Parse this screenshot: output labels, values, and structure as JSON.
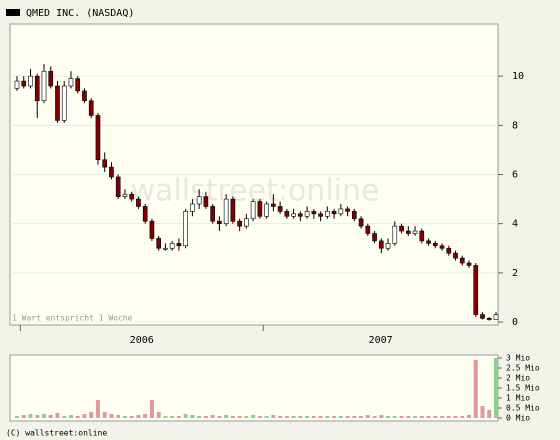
{
  "chart_data": {
    "type": "candlestick",
    "title": "QMED INC. (NASDAQ)",
    "note": "1 Wart entspricht 1 Woche",
    "watermark": "wallstreet:online",
    "footer": "(C) wallstreet:online",
    "periods": [
      {
        "label": "2006",
        "start": 1,
        "end": 37
      },
      {
        "label": "2007",
        "start": 37,
        "end": 72
      }
    ],
    "ylim": [
      0,
      12
    ],
    "yticks": [
      0,
      2,
      4,
      6,
      8,
      10
    ],
    "grid": true,
    "up_color": "#ffffff",
    "down_color": "#800000",
    "volume_up_color": "#8fcf8f",
    "volume_down_color": "#e09a9a",
    "ohlc": [
      [
        9.5,
        10.0,
        9.4,
        9.8
      ],
      [
        9.8,
        10.0,
        9.5,
        9.6
      ],
      [
        9.6,
        10.3,
        9.5,
        10.0
      ],
      [
        10.0,
        10.1,
        8.3,
        9.0
      ],
      [
        9.0,
        10.5,
        8.9,
        10.2
      ],
      [
        10.2,
        10.4,
        9.5,
        9.6
      ],
      [
        9.6,
        9.8,
        8.1,
        8.2
      ],
      [
        8.2,
        9.8,
        8.1,
        9.6
      ],
      [
        9.6,
        10.2,
        9.5,
        9.9
      ],
      [
        9.9,
        10.0,
        9.3,
        9.4
      ],
      [
        9.4,
        9.5,
        8.9,
        9.0
      ],
      [
        9.0,
        9.1,
        8.3,
        8.4
      ],
      [
        8.4,
        8.5,
        6.4,
        6.6
      ],
      [
        6.6,
        6.9,
        6.1,
        6.3
      ],
      [
        6.3,
        6.5,
        5.8,
        5.9
      ],
      [
        5.9,
        6.0,
        5.0,
        5.1
      ],
      [
        5.1,
        5.4,
        5.0,
        5.2
      ],
      [
        5.2,
        5.3,
        4.9,
        5.0
      ],
      [
        5.0,
        5.1,
        4.6,
        4.7
      ],
      [
        4.7,
        4.8,
        4.0,
        4.1
      ],
      [
        4.1,
        4.2,
        3.3,
        3.4
      ],
      [
        3.4,
        3.5,
        2.9,
        3.0
      ],
      [
        3.0,
        3.2,
        2.9,
        3.0
      ],
      [
        3.0,
        3.3,
        2.9,
        3.2
      ],
      [
        3.2,
        3.4,
        2.9,
        3.1
      ],
      [
        3.1,
        4.6,
        3.0,
        4.5
      ],
      [
        4.5,
        5.0,
        4.3,
        4.8
      ],
      [
        4.8,
        5.4,
        4.6,
        5.1
      ],
      [
        5.1,
        5.3,
        4.6,
        4.7
      ],
      [
        4.7,
        4.8,
        4.0,
        4.1
      ],
      [
        4.1,
        4.3,
        3.7,
        4.0
      ],
      [
        4.0,
        5.2,
        3.9,
        5.0
      ],
      [
        5.0,
        5.1,
        4.0,
        4.1
      ],
      [
        4.1,
        4.2,
        3.7,
        3.9
      ],
      [
        3.9,
        4.4,
        3.8,
        4.2
      ],
      [
        4.2,
        5.0,
        4.1,
        4.9
      ],
      [
        4.9,
        5.0,
        4.2,
        4.3
      ],
      [
        4.3,
        4.9,
        4.2,
        4.8
      ],
      [
        4.8,
        5.2,
        4.5,
        4.7
      ],
      [
        4.7,
        4.9,
        4.4,
        4.5
      ],
      [
        4.5,
        4.6,
        4.2,
        4.3
      ],
      [
        4.3,
        4.6,
        4.2,
        4.4
      ],
      [
        4.4,
        4.5,
        4.1,
        4.3
      ],
      [
        4.3,
        4.7,
        4.2,
        4.5
      ],
      [
        4.5,
        4.6,
        4.2,
        4.4
      ],
      [
        4.4,
        4.5,
        4.1,
        4.3
      ],
      [
        4.3,
        4.7,
        4.2,
        4.5
      ],
      [
        4.5,
        4.6,
        4.2,
        4.4
      ],
      [
        4.4,
        4.8,
        4.3,
        4.6
      ],
      [
        4.6,
        4.7,
        4.3,
        4.5
      ],
      [
        4.5,
        4.6,
        4.1,
        4.2
      ],
      [
        4.2,
        4.3,
        3.8,
        3.9
      ],
      [
        3.9,
        4.0,
        3.5,
        3.6
      ],
      [
        3.6,
        3.7,
        3.2,
        3.3
      ],
      [
        3.3,
        3.4,
        2.8,
        3.0
      ],
      [
        3.0,
        3.4,
        2.9,
        3.2
      ],
      [
        3.2,
        4.1,
        3.1,
        3.9
      ],
      [
        3.9,
        4.0,
        3.6,
        3.7
      ],
      [
        3.7,
        3.9,
        3.5,
        3.6
      ],
      [
        3.6,
        3.9,
        3.5,
        3.7
      ],
      [
        3.7,
        3.8,
        3.2,
        3.3
      ],
      [
        3.3,
        3.4,
        3.1,
        3.2
      ],
      [
        3.2,
        3.3,
        3.0,
        3.1
      ],
      [
        3.1,
        3.2,
        2.9,
        3.0
      ],
      [
        3.0,
        3.1,
        2.7,
        2.8
      ],
      [
        2.8,
        2.9,
        2.5,
        2.6
      ],
      [
        2.6,
        2.7,
        2.3,
        2.4
      ],
      [
        2.4,
        2.5,
        2.2,
        2.3
      ],
      [
        2.3,
        2.4,
        0.2,
        0.3
      ],
      [
        0.3,
        0.4,
        0.1,
        0.15
      ],
      [
        0.15,
        0.2,
        0.05,
        0.1
      ],
      [
        0.1,
        0.4,
        0.1,
        0.3
      ]
    ],
    "volume": [
      0.1,
      0.15,
      0.2,
      0.15,
      0.2,
      0.15,
      0.25,
      0.1,
      0.15,
      0.1,
      0.2,
      0.3,
      0.9,
      0.3,
      0.2,
      0.15,
      0.1,
      0.1,
      0.15,
      0.2,
      0.9,
      0.3,
      0.1,
      0.1,
      0.1,
      0.2,
      0.15,
      0.1,
      0.1,
      0.15,
      0.1,
      0.15,
      0.1,
      0.1,
      0.1,
      0.15,
      0.1,
      0.1,
      0.15,
      0.1,
      0.1,
      0.1,
      0.1,
      0.1,
      0.1,
      0.1,
      0.1,
      0.1,
      0.1,
      0.1,
      0.1,
      0.1,
      0.15,
      0.1,
      0.15,
      0.1,
      0.1,
      0.1,
      0.1,
      0.1,
      0.1,
      0.1,
      0.1,
      0.1,
      0.1,
      0.1,
      0.1,
      0.15,
      2.9,
      0.6,
      0.4,
      3.0
    ],
    "vlim": [
      0,
      3
    ],
    "vticks": [
      {
        "value": 0,
        "label": "0 Mio"
      },
      {
        "value": 0.5,
        "label": "0.5 Mio"
      },
      {
        "value": 1,
        "label": "1 Mio"
      },
      {
        "value": 1.5,
        "label": "1.5 Mio"
      },
      {
        "value": 2,
        "label": "2 Mio"
      },
      {
        "value": 2.5,
        "label": "2.5 Mio"
      },
      {
        "value": 3,
        "label": "3 Mio"
      }
    ]
  }
}
